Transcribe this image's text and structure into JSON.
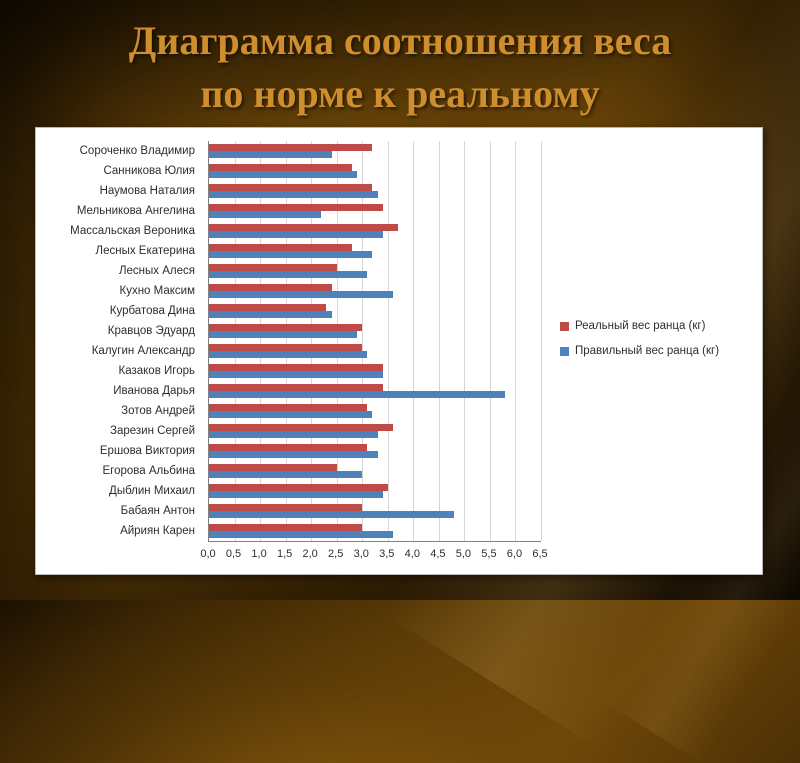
{
  "slide": {
    "title_line1": "Диаграмма соотношения веса",
    "title_line2": "по норме к реальному"
  },
  "chart_data": {
    "type": "bar",
    "orientation": "horizontal",
    "title": "Диаграмма соотношения веса по норме к реальному",
    "categories": [
      "Сороченко Владимир",
      "Санникова Юлия",
      "Наумова Наталия",
      "Мельникова Ангелина",
      "Массальская Вероника",
      "Лесных Екатерина",
      "Лесных Алеся",
      "Кухно Максим",
      "Курбатова Дина",
      "Кравцов Эдуард",
      "Калугин Александр",
      "Казаков Игорь",
      "Иванова Дарья",
      "Зотов Андрей",
      "Зарезин Сергей",
      "Ершова Виктория",
      "Егорова Альбина",
      "Дыблин Михаил",
      "Бабаян Антон",
      "Айриян Карен"
    ],
    "series": [
      {
        "name": "Реальный вес ранца (кг)",
        "color": "#BE4B48",
        "values": [
          3.2,
          2.8,
          3.2,
          3.4,
          3.7,
          2.8,
          2.5,
          2.4,
          2.3,
          3.0,
          3.0,
          3.4,
          3.4,
          3.1,
          3.6,
          3.1,
          2.5,
          3.5,
          3.0,
          3.0
        ]
      },
      {
        "name": "Правильный вес ранца (кг)",
        "color": "#4F81BD",
        "values": [
          2.4,
          2.9,
          3.3,
          2.2,
          3.4,
          3.2,
          3.1,
          3.6,
          2.4,
          2.9,
          3.1,
          3.4,
          5.8,
          3.2,
          3.3,
          3.3,
          3.0,
          3.4,
          4.8,
          3.6
        ]
      }
    ],
    "xlim": [
      0,
      6.5
    ],
    "xtick_step": 0.5,
    "xtick_labels": [
      "0,0",
      "0,5",
      "1,0",
      "1,5",
      "2,0",
      "2,5",
      "3,0",
      "3,5",
      "4,0",
      "4,5",
      "5,0",
      "5,5",
      "6,0",
      "6,5"
    ],
    "grid": true,
    "legend_position": "right"
  }
}
